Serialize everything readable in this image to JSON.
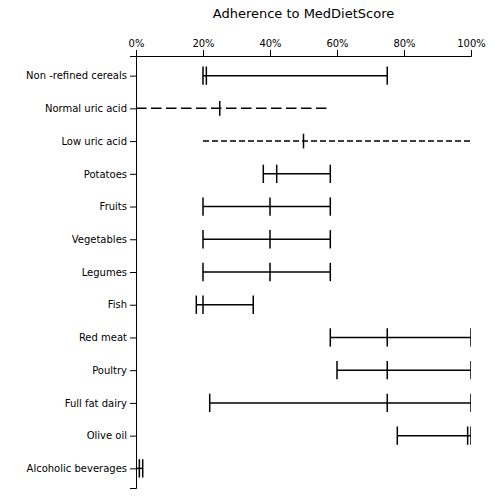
{
  "chart_data": {
    "type": "range",
    "title": "Adherence to MedDietScore",
    "categories": [
      "Non -refined cereals",
      "Normal uric acid",
      "Low uric acid",
      "Potatoes",
      "Fruits",
      "Vegetables",
      "Legumes",
      "Fish",
      "Red meat",
      "Poultry",
      "Full fat dairy",
      "Olive oil",
      "Alcoholic beverages"
    ],
    "values": [
      {
        "q1": 20,
        "median": 21,
        "q3": 75,
        "line_style": "solid"
      },
      {
        "q1": 0,
        "median": 25,
        "q3": 57,
        "line_style": "dashed"
      },
      {
        "q1": 20,
        "median": 50,
        "q3": 100,
        "line_style": "fine-dashed"
      },
      {
        "q1": 38,
        "median": 42,
        "q3": 58,
        "line_style": "solid"
      },
      {
        "q1": 20,
        "median": 40,
        "q3": 58,
        "line_style": "solid"
      },
      {
        "q1": 20,
        "median": 40,
        "q3": 58,
        "line_style": "solid"
      },
      {
        "q1": 20,
        "median": 40,
        "q3": 58,
        "line_style": "solid"
      },
      {
        "q1": 18,
        "median": 20,
        "q3": 35,
        "line_style": "solid"
      },
      {
        "q1": 58,
        "median": 75,
        "q3": 100,
        "line_style": "solid"
      },
      {
        "q1": 60,
        "median": 75,
        "q3": 100,
        "line_style": "solid"
      },
      {
        "q1": 22,
        "median": 75,
        "q3": 100,
        "line_style": "solid"
      },
      {
        "q1": 78,
        "median": 99,
        "q3": 100,
        "line_style": "solid"
      },
      {
        "q1": 0,
        "median": 1,
        "q3": 2,
        "line_style": "solid"
      }
    ],
    "xlim": [
      0,
      100
    ],
    "xticks": [
      {
        "value": 0,
        "label": "0%"
      },
      {
        "value": 20,
        "label": "20%"
      },
      {
        "value": 40,
        "label": "40%"
      },
      {
        "value": 60,
        "label": "60%"
      },
      {
        "value": 80,
        "label": "80%"
      },
      {
        "value": 100,
        "label": "100%"
      }
    ],
    "grid": false
  }
}
